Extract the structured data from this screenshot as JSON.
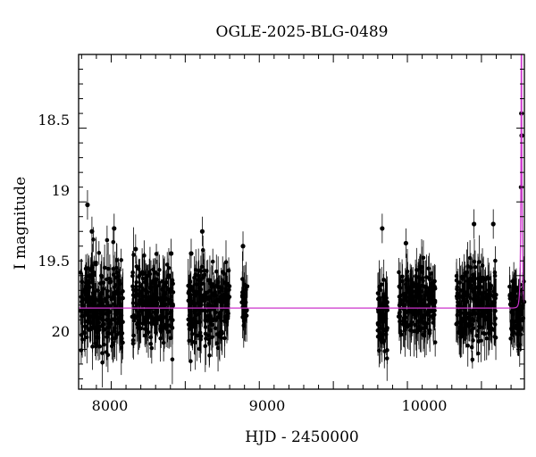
{
  "chart_data": {
    "type": "scatter",
    "title": "OGLE-2025-BLG-0489",
    "xlabel": "HJD - 2450000",
    "ylabel": "I magnitude",
    "xlim": [
      7780,
      10790
    ],
    "ylim": [
      20.27,
      18.0
    ],
    "y_inverted": true,
    "x_ticks": [
      8000,
      9000,
      10000
    ],
    "y_ticks": [
      18.5,
      19,
      19.5,
      20
    ],
    "x_tick_labels": [
      "8000",
      "9000",
      "10000"
    ],
    "y_tick_labels": [
      "18.5",
      "19",
      "19.5",
      "20"
    ],
    "grid": false,
    "legend": "none",
    "colors": {
      "data": "#000000",
      "model": "#cc33cc",
      "frame": "#000000"
    },
    "model": {
      "baseline_mag": 19.72,
      "peak_hjd": 10770,
      "peak_mag": 17.2,
      "tE_days": 8
    },
    "seasons": [
      {
        "start": 7790,
        "end": 8080,
        "mean": 19.7,
        "scatter": 0.28,
        "n": 260,
        "peaks": [
          {
            "x": 7840,
            "y": 19.02
          },
          {
            "x": 7870,
            "y": 19.2
          },
          {
            "x": 8020,
            "y": 19.18
          }
        ]
      },
      {
        "start": 8140,
        "end": 8420,
        "mean": 19.69,
        "scatter": 0.24,
        "n": 240,
        "peaks": [
          {
            "x": 8165,
            "y": 19.32
          },
          {
            "x": 8405,
            "y": 19.35
          }
        ]
      },
      {
        "start": 8520,
        "end": 8800,
        "mean": 19.7,
        "scatter": 0.24,
        "n": 240,
        "peaks": [
          {
            "x": 8540,
            "y": 19.35
          },
          {
            "x": 8615,
            "y": 19.2
          }
        ]
      },
      {
        "start": 8880,
        "end": 8920,
        "mean": 19.68,
        "scatter": 0.15,
        "n": 30,
        "peaks": [
          {
            "x": 8890,
            "y": 19.3
          }
        ]
      },
      {
        "start": 9800,
        "end": 9865,
        "mean": 19.8,
        "scatter": 0.22,
        "n": 70,
        "peaks": [
          {
            "x": 9830,
            "y": 19.18
          }
        ]
      },
      {
        "start": 9940,
        "end": 10190,
        "mean": 19.68,
        "scatter": 0.22,
        "n": 210,
        "peaks": [
          {
            "x": 9990,
            "y": 19.28
          },
          {
            "x": 10085,
            "y": 19.45
          }
        ]
      },
      {
        "start": 10330,
        "end": 10600,
        "mean": 19.7,
        "scatter": 0.24,
        "n": 230,
        "peaks": [
          {
            "x": 10450,
            "y": 19.15
          },
          {
            "x": 10580,
            "y": 19.15
          }
        ]
      },
      {
        "start": 10690,
        "end": 10790,
        "mean": 19.74,
        "scatter": 0.2,
        "n": 80,
        "peaks": [
          {
            "x": 10770,
            "y": 18.4
          },
          {
            "x": 10772,
            "y": 18.55
          },
          {
            "x": 10768,
            "y": 18.9
          }
        ]
      }
    ]
  }
}
